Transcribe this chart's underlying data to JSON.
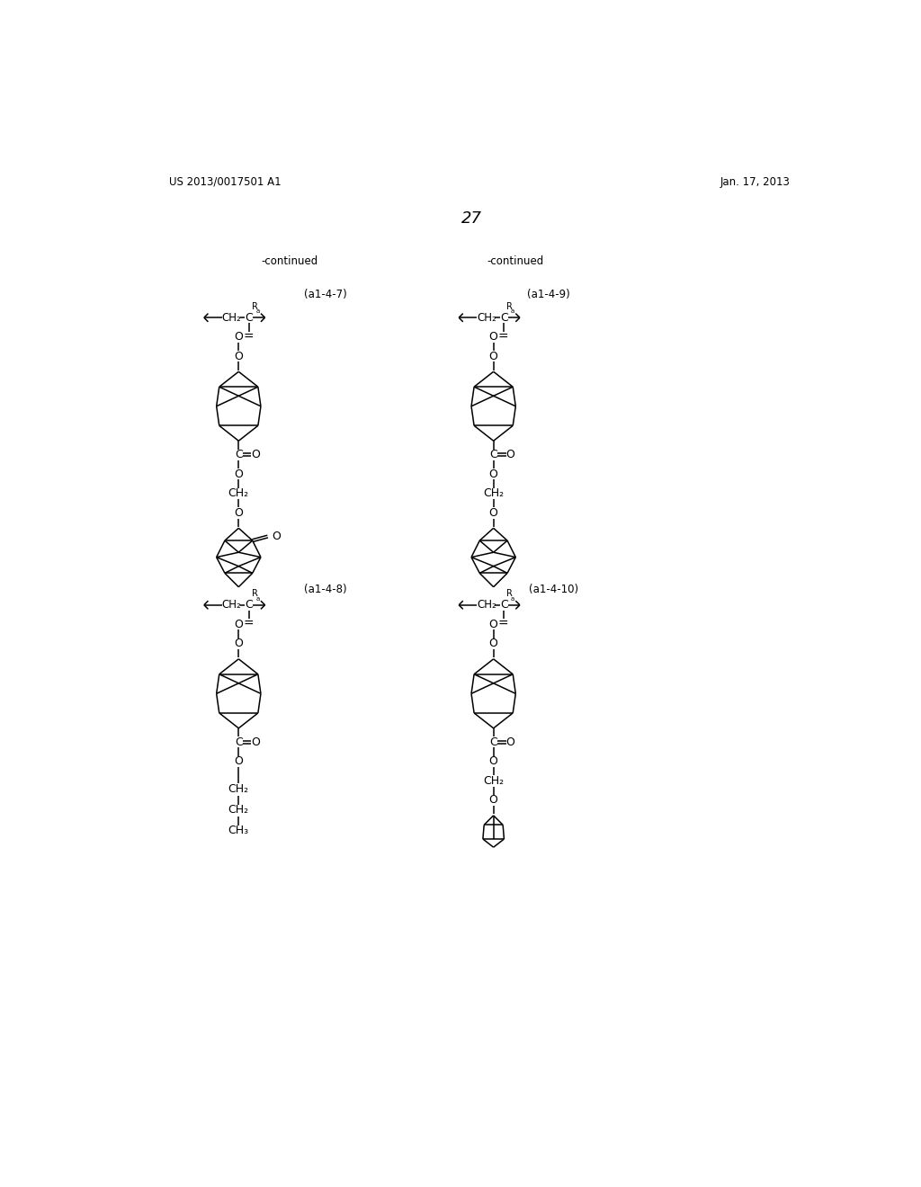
{
  "page_number": "27",
  "patent_number": "US 2013/0017501 A1",
  "date": "Jan. 17, 2013",
  "continued_left": "-continued",
  "continued_right": "-continued",
  "label_a147": "(a1-4-7)",
  "label_a149": "(a1-4-9)",
  "label_a148": "(a1-4-8)",
  "label_a1410": "(a1-4-10)",
  "background_color": "#ffffff",
  "text_color": "#000000",
  "lw": 1.1
}
